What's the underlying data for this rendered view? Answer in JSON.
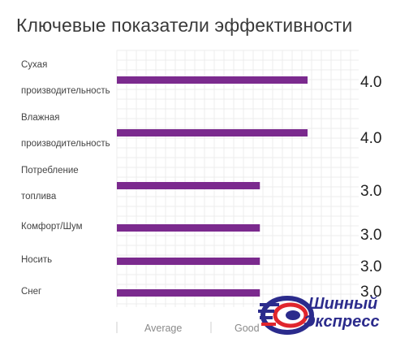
{
  "title": "Ключевые показатели эффективности",
  "chart_data": {
    "type": "bar",
    "orientation": "horizontal",
    "title": "Ключевые показатели эффективности",
    "categories": [
      [
        "Сухая",
        "производительность"
      ],
      [
        "Влажная",
        "производительность"
      ],
      [
        "Потребление",
        "топлива"
      ],
      [
        "Комфорт/Шум"
      ],
      [
        "Носить"
      ],
      [
        "Снег"
      ]
    ],
    "values": [
      4.0,
      4.0,
      3.0,
      3.0,
      3.0,
      3.0
    ],
    "value_labels": [
      "4.0",
      "4.0",
      "3.0",
      "3.0",
      "3.0",
      "3.0"
    ],
    "x_tick_labels": [
      "Average",
      "Good"
    ],
    "xlim": [
      0,
      5
    ],
    "grid": true,
    "bar_color": "#7b2a8e"
  },
  "logo": {
    "line1": "Шинный",
    "line2": "Экспресс",
    "primary_color": "#2b2b8c",
    "accent_color": "#e0262d"
  }
}
